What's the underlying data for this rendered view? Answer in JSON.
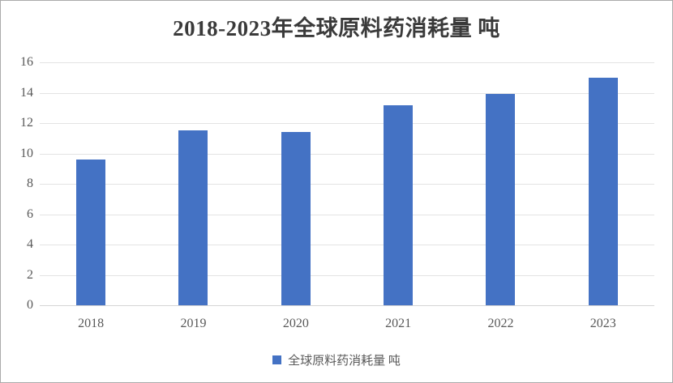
{
  "chart_data": {
    "type": "bar",
    "title": "2018-2023年全球原料药消耗量 吨",
    "categories": [
      "2018",
      "2019",
      "2020",
      "2021",
      "2022",
      "2023"
    ],
    "values": [
      9.6,
      11.5,
      11.4,
      13.2,
      13.9,
      15
    ],
    "series_name": "全球原料药消耗量 吨",
    "xlabel": "",
    "ylabel": "",
    "ylim": [
      0,
      16
    ],
    "yticks": [
      0,
      2,
      4,
      6,
      8,
      10,
      12,
      14,
      16
    ],
    "grid": true,
    "legend_position": "bottom",
    "colors": {
      "bar": "#4472C4",
      "gridline": "#e3e3e3",
      "axis_line": "#d4d4d4",
      "tick_label": "#595959",
      "title": "#3a3a3a"
    }
  },
  "legend": {
    "label": "全球原料药消耗量 吨",
    "marker_color": "#4472C4"
  }
}
